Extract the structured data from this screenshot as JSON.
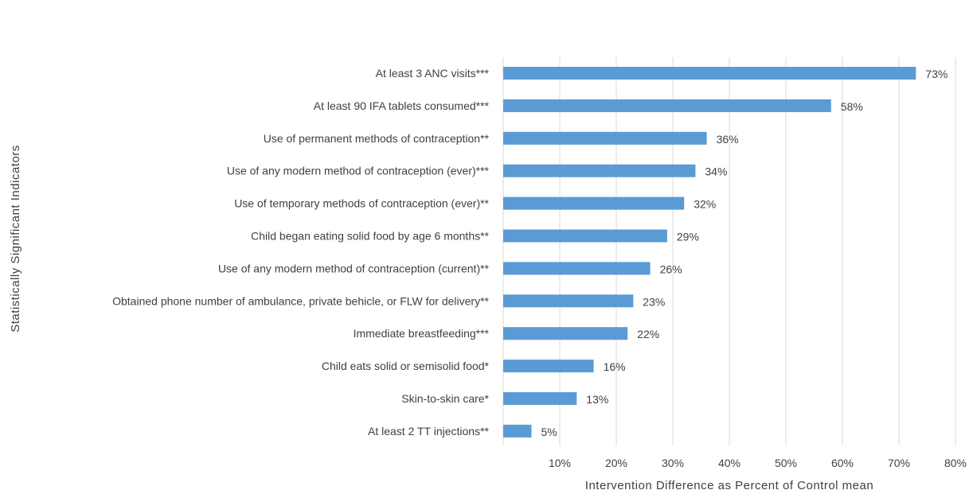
{
  "chart_data": {
    "type": "bar",
    "orientation": "horizontal",
    "categories": [
      "At least 3 ANC visits***",
      "At least 90 IFA tablets consumed***",
      "Use of permanent methods of contraception**",
      "Use of any modern method of contraception (ever)***",
      "Use of temporary methods of contraception (ever)**",
      "Child began eating solid food by age 6 months**",
      "Use of any modern method of contraception (current)**",
      "Obtained phone number of ambulance, private behicle, or FLW for delivery**",
      "Immediate breastfeeding***",
      "Child eats solid or semisolid food*",
      "Skin-to-skin care*",
      "At least 2 TT injections**"
    ],
    "values": [
      73,
      58,
      36,
      34,
      32,
      29,
      26,
      23,
      22,
      16,
      13,
      5
    ],
    "value_labels": [
      "73%",
      "58%",
      "36%",
      "34%",
      "32%",
      "29%",
      "26%",
      "23%",
      "22%",
      "16%",
      "13%",
      "5%"
    ],
    "xlim": [
      0,
      80
    ],
    "ticks": [
      10,
      20,
      30,
      40,
      50,
      60,
      70,
      80
    ],
    "tick_labels": [
      "10%",
      "20%",
      "30%",
      "40%",
      "50%",
      "60%",
      "70%",
      "80%"
    ],
    "xlabel": "Intervention Difference as Percent of Control mean",
    "ylabel": "Statistically Significant Indicators",
    "grid": true,
    "bar_color": "#5b9bd5"
  }
}
